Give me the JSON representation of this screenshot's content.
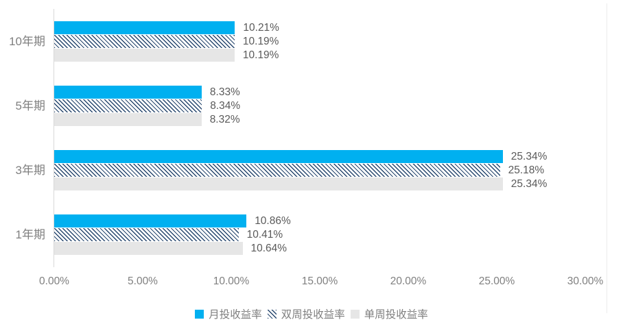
{
  "chart_data": {
    "type": "bar",
    "orientation": "horizontal",
    "title": "",
    "categories": [
      "10年期",
      "5年期",
      "3年期",
      "1年期"
    ],
    "series": [
      {
        "name": "月投收益率",
        "color": "#00b0f0",
        "pattern": "solid",
        "values": [
          10.21,
          8.33,
          25.34,
          10.86
        ],
        "labels": [
          "10.21%",
          "8.33%",
          "25.34%",
          "10.86%"
        ]
      },
      {
        "name": "双周投收益率",
        "color": "#27476e",
        "pattern": "diagonal-hatch",
        "values": [
          10.19,
          8.34,
          25.18,
          10.41
        ],
        "labels": [
          "10.19%",
          "8.34%",
          "25.18%",
          "10.41%"
        ]
      },
      {
        "name": "单周投收益率",
        "color": "#e6e6e6",
        "pattern": "solid",
        "values": [
          10.19,
          8.32,
          25.34,
          10.64
        ],
        "labels": [
          "10.19%",
          "8.32%",
          "25.34%",
          "10.64%"
        ]
      }
    ],
    "xlim": [
      0,
      30
    ],
    "x_ticks": [
      {
        "value": 0,
        "label": "0.00%"
      },
      {
        "value": 5,
        "label": "5.00%"
      },
      {
        "value": 10,
        "label": "10.00%"
      },
      {
        "value": 15,
        "label": "15.00%"
      },
      {
        "value": 20,
        "label": "20.00%"
      },
      {
        "value": 25,
        "label": "25.00%"
      },
      {
        "value": 30,
        "label": "30.00%"
      }
    ],
    "grid": false,
    "legend_position": "bottom"
  },
  "style": {
    "series_blue": "#00b0f0",
    "hatch_foreground": "#27476e",
    "series_gray": "#e6e6e6",
    "axis_line_color": "#d9d9d9",
    "right_border_color": "#ececec",
    "value_label_color": "#595959",
    "axis_label_color": "#7f7f7f"
  }
}
